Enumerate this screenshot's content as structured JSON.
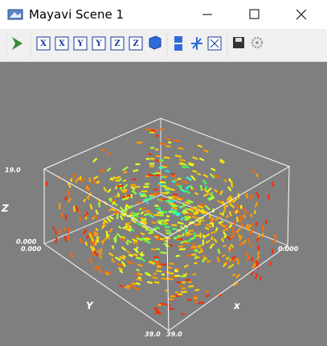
{
  "window": {
    "title": "Mayavi Scene 1"
  },
  "toolbar": {
    "view_buttons": [
      "X",
      "X",
      "Y",
      "Y",
      "Z",
      "Z"
    ]
  },
  "scene": {
    "axes": {
      "z_label": "Z",
      "y_label": "Y",
      "x_label": "x"
    },
    "tick_labels": {
      "z_top": "19.0",
      "z_bottom": "0.000",
      "y_left": "0.000",
      "y_front": "39.0",
      "x_front": "39.0",
      "x_right": "0.000"
    }
  }
}
